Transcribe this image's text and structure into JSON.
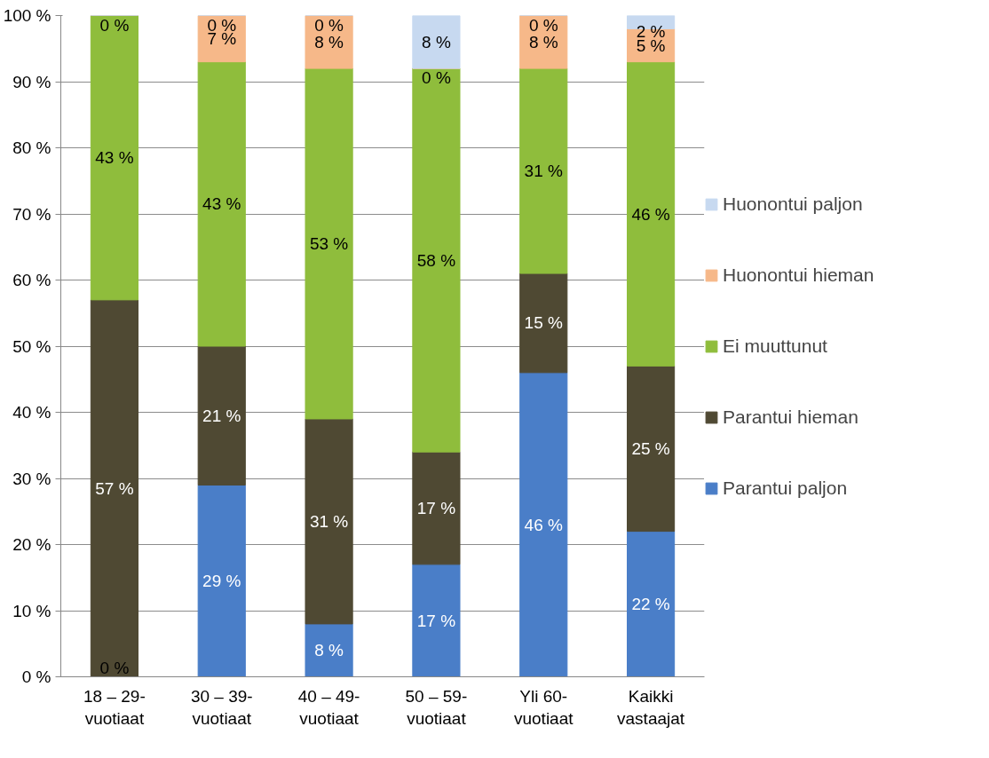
{
  "chart_data": {
    "type": "bar",
    "stacked": true,
    "categories": [
      "18 – 29-\nvuotiaat",
      "30 – 39-\nvuotiaat",
      "40 – 49-\nvuotiaat",
      "50 – 59-\nvuotiaat",
      "Yli 60-\nvuotiaat",
      "Kaikki\nvastaajat"
    ],
    "series": [
      {
        "name": "Parantui paljon",
        "color": "#4a7ec8",
        "values": [
          0,
          29,
          8,
          17,
          46,
          22
        ],
        "value_labels": [
          "0 %",
          "29 %",
          "8 %",
          "17 %",
          "46 %",
          "22 %"
        ]
      },
      {
        "name": "Parantui hieman",
        "color": "#4f4933",
        "values": [
          57,
          21,
          31,
          17,
          15,
          25
        ],
        "value_labels": [
          "57 %",
          "21 %",
          "31 %",
          "17 %",
          "15 %",
          "25 %"
        ]
      },
      {
        "name": "Ei muuttunut",
        "color": "#8fbd3c",
        "values": [
          43,
          43,
          53,
          58,
          31,
          46
        ],
        "value_labels": [
          "43 %",
          "43 %",
          "53 %",
          "58 %",
          "31 %",
          "46 %"
        ]
      },
      {
        "name": "Huonontui hieman",
        "color": "#f6b889",
        "values": [
          0,
          7,
          8,
          0,
          8,
          5
        ],
        "value_labels": [
          "0 %",
          "7 %",
          "8 %",
          "0 %",
          "8 %",
          "5 %"
        ]
      },
      {
        "name": "Huonontui paljon",
        "color": "#c7d9f0",
        "values": [
          0,
          0,
          0,
          8,
          0,
          2
        ],
        "value_labels": [
          null,
          "0 %",
          "0 %",
          "8 %",
          "0 %",
          "2 %"
        ]
      }
    ],
    "ylim": [
      0,
      100
    ],
    "yticks": [
      {
        "value": 0,
        "label": "0 %"
      },
      {
        "value": 10,
        "label": "10 %"
      },
      {
        "value": 20,
        "label": "20 %"
      },
      {
        "value": 30,
        "label": "30 %"
      },
      {
        "value": 40,
        "label": "40 %"
      },
      {
        "value": 50,
        "label": "50 %"
      },
      {
        "value": 60,
        "label": "60 %"
      },
      {
        "value": 70,
        "label": "70 %"
      },
      {
        "value": 80,
        "label": "80 %"
      },
      {
        "value": 90,
        "label": "90 %"
      },
      {
        "value": 100,
        "label": "100 %"
      }
    ],
    "grid": "y",
    "legend": "right",
    "data_labels": true
  }
}
